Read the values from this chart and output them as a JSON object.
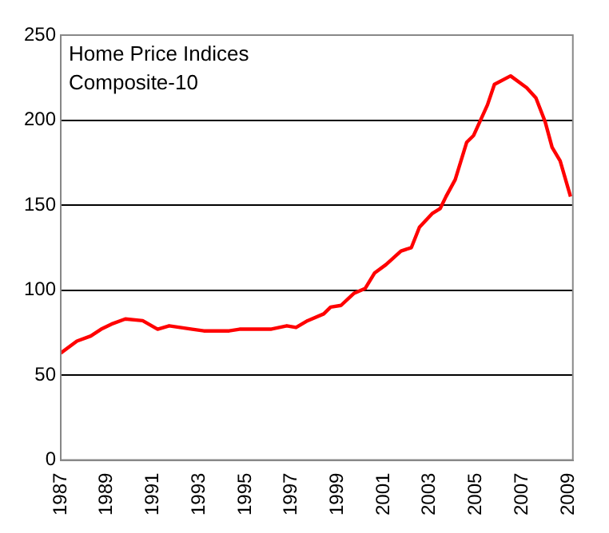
{
  "chart_data": {
    "type": "line",
    "title": "Home Price Indices",
    "subtitle": "Composite-10",
    "series": [
      {
        "color": "#ff0000",
        "x": [
          1987.0,
          1987.7,
          1988.3,
          1988.75,
          1989.2,
          1989.8,
          1990.55,
          1991.2,
          1991.7,
          1992.7,
          1993.2,
          1994.3,
          1994.75,
          1995.4,
          1996.1,
          1996.8,
          1997.2,
          1997.7,
          1998.4,
          1998.7,
          1999.15,
          1999.7,
          2000.2,
          2000.6,
          2001.1,
          2001.75,
          2002.2,
          2002.55,
          2003.1,
          2003.45,
          2003.7,
          2004.1,
          2004.6,
          2004.9,
          2005.5,
          2005.8,
          2006.5,
          2007.2,
          2007.6,
          2008.0,
          2008.3,
          2008.65,
          2009.1
        ],
        "values": [
          63,
          70,
          73,
          77,
          80,
          83,
          82,
          77,
          79,
          77,
          76,
          76,
          77,
          77,
          77,
          79,
          78,
          82,
          86,
          90,
          91,
          98,
          101,
          110,
          115,
          123,
          125,
          137,
          145,
          148,
          155,
          165,
          187,
          191,
          209,
          221,
          226,
          219,
          213,
          199,
          184,
          176,
          155
        ]
      }
    ],
    "xlim": [
      1987,
      2009.2
    ],
    "xticks": [
      1987,
      1989,
      1991,
      1993,
      1995,
      1997,
      1999,
      2001,
      2003,
      2005,
      2007,
      2009
    ],
    "ylim": [
      0,
      250
    ],
    "yticks": [
      0,
      50,
      100,
      150,
      200,
      250
    ],
    "grid": "y",
    "legend": false,
    "marker": "none",
    "line_style": "solid"
  }
}
